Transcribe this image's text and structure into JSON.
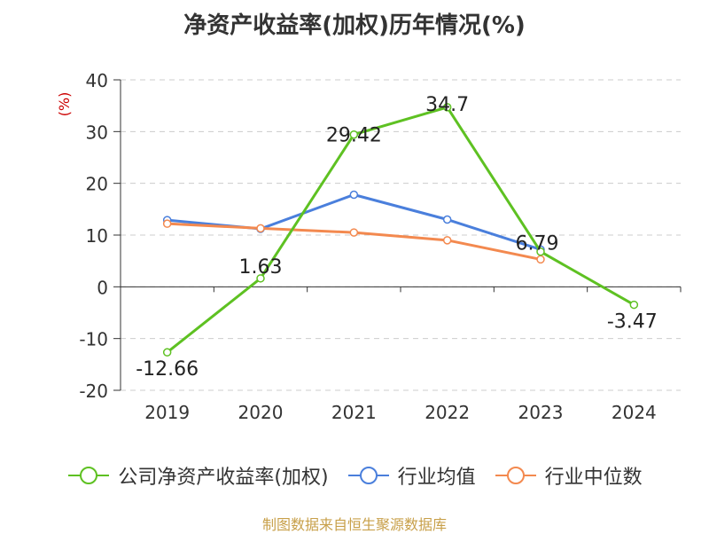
{
  "chart_data": {
    "type": "line",
    "title": "净资产收益率(加权)历年情况(%)",
    "ylabel": "(%)",
    "categories": [
      "2019",
      "2020",
      "2021",
      "2022",
      "2023",
      "2024"
    ],
    "ylim": [
      -20,
      40
    ],
    "yticks": [
      40,
      30,
      20,
      10,
      0,
      -10,
      -20
    ],
    "grid": true,
    "legend_position": "bottom",
    "series": [
      {
        "name": "公司净资产收益率(加权)",
        "color": "#5ec122",
        "values": [
          -12.66,
          1.63,
          29.42,
          34.7,
          6.79,
          -3.47
        ],
        "labels": [
          "-12.66",
          "1.63",
          "29.42",
          "34.7",
          "6.79",
          "-3.47"
        ]
      },
      {
        "name": "行业均值",
        "color": "#4a7fdc",
        "values": [
          12.9,
          11.2,
          17.8,
          13.0,
          7.2,
          null
        ]
      },
      {
        "name": "行业中位数",
        "color": "#f3894f",
        "values": [
          12.2,
          11.3,
          10.5,
          9.0,
          5.3,
          null
        ]
      }
    ]
  },
  "footer": {
    "source": "制图数据来自恒生聚源数据库"
  }
}
